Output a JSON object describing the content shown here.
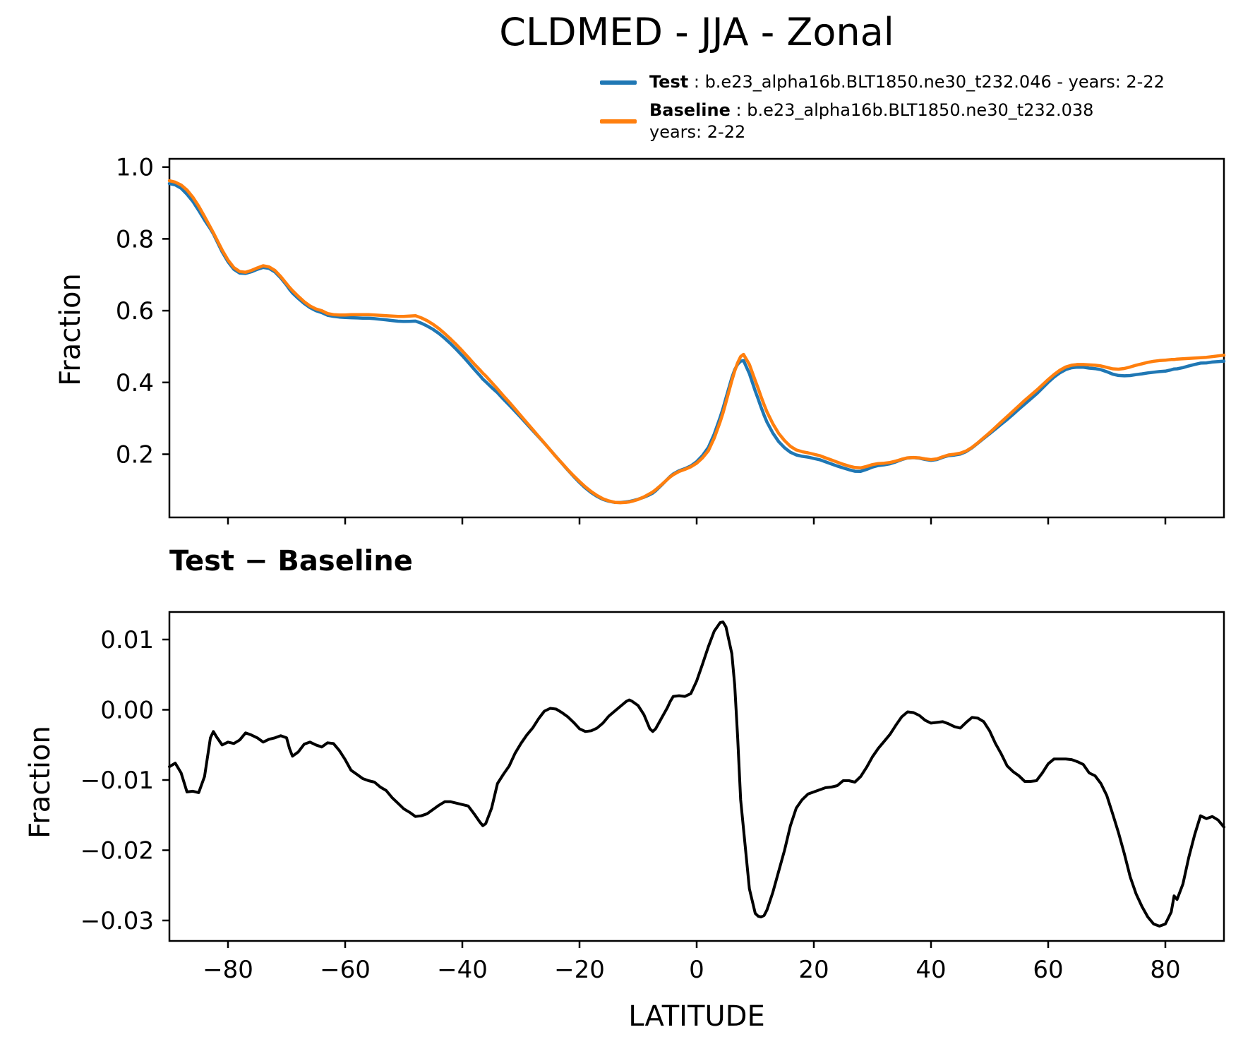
{
  "figure_title": "CLDMED - JJA - Zonal",
  "legend": {
    "test_label": "Test",
    "test_sep": " : ",
    "test_desc": "b.e23_alpha16b.BLT1850.ne30_t232.046 - years: 2-22",
    "test_color": "#1f77b4",
    "baseline_label": "Baseline",
    "baseline_sep": " : ",
    "baseline_desc": "b.e23_alpha16b.BLT1850.ne30_t232.038",
    "baseline_desc_line2": "years: 2-22",
    "baseline_color": "#ff7f0e"
  },
  "top_panel": {
    "ylabel": "Fraction",
    "ytick_labels": [
      "1.0",
      "0.8",
      "0.6",
      "0.4",
      "0.2"
    ],
    "ytick_values": [
      1.0,
      0.8,
      0.6,
      0.4,
      0.2
    ]
  },
  "bottom_panel": {
    "title": "Test − Baseline",
    "ylabel": "Fraction",
    "xlabel": "LATITUDE",
    "ytick_labels": [
      "0.01",
      "0.00",
      "−0.01",
      "−0.02",
      "−0.03"
    ],
    "ytick_values": [
      0.01,
      0.0,
      -0.01,
      -0.02,
      -0.03
    ],
    "xtick_labels": [
      "−80",
      "−60",
      "−40",
      "−20",
      "0",
      "20",
      "40",
      "60",
      "80"
    ],
    "xtick_values": [
      -80,
      -60,
      -40,
      -20,
      0,
      20,
      40,
      60,
      80
    ]
  },
  "chart_data": {
    "type": "line",
    "x_label": "LATITUDE",
    "x_range": [
      -90,
      90
    ],
    "grid": false,
    "legend_position": "above-axes upper-right",
    "latitudes": [
      -90,
      -89,
      -88,
      -87,
      -86,
      -85,
      -84,
      -83,
      -82.5,
      -82,
      -81,
      -80,
      -79,
      -78,
      -77,
      -76,
      -75,
      -74,
      -73,
      -72,
      -71,
      -70,
      -69.5,
      -69,
      -68,
      -67,
      -66,
      -65,
      -64,
      -63,
      -62,
      -61,
      -60,
      -59,
      -58,
      -57,
      -56,
      -55,
      -54,
      -53,
      -52,
      -51,
      -50,
      -49,
      -48,
      -47,
      -46,
      -45,
      -44,
      -43,
      -42,
      -41,
      -40,
      -39,
      -38,
      -37,
      -36.5,
      -36,
      -35,
      -34,
      -33,
      -32,
      -31,
      -30,
      -29,
      -28,
      -27,
      -26,
      -25,
      -24,
      -23,
      -22,
      -21,
      -20,
      -19,
      -18,
      -17,
      -16,
      -15,
      -14,
      -13,
      -12,
      -11.5,
      -11,
      -10,
      -9,
      -8,
      -7.5,
      -7,
      -6,
      -5,
      -4.5,
      -4,
      -3,
      -2,
      -1,
      0,
      1,
      2,
      3,
      4,
      4.5,
      5,
      6,
      6.5,
      7,
      7.5,
      8,
      9,
      10,
      10.5,
      11,
      11.5,
      12,
      13,
      14,
      15,
      16,
      17,
      18,
      19,
      20,
      21,
      22,
      23,
      24,
      25,
      26,
      27,
      28,
      29,
      30,
      31,
      32,
      33,
      34,
      35,
      36,
      37,
      38,
      39,
      40,
      41,
      42,
      43,
      44,
      45,
      46,
      47,
      48,
      49,
      50,
      51,
      52,
      53,
      54,
      55,
      56,
      57,
      58,
      59,
      60,
      61,
      62,
      63,
      64,
      65,
      66,
      67,
      68,
      69,
      70,
      71,
      72,
      73,
      74,
      75,
      76,
      77,
      78,
      79,
      80,
      81,
      81.5,
      82,
      83,
      84,
      85,
      86,
      87,
      88,
      89,
      90
    ],
    "panels": [
      {
        "title": "CLDMED - JJA - Zonal",
        "ylabel": "Fraction",
        "ylim": [
          0.02,
          1.02
        ],
        "series": [
          {
            "name": "Test",
            "legend_label": "Test : b.e23_alpha16b.BLT1850.ne30_t232.046 - years: 2-22",
            "color": "#1f77b4",
            "values": [
              0.9539,
              0.9504,
              0.941,
              0.9243,
              0.9044,
              0.8792,
              0.8525,
              0.828,
              0.8139,
              0.7972,
              0.764,
              0.7364,
              0.7152,
              0.7047,
              0.7037,
              0.7084,
              0.715,
              0.7204,
              0.7178,
              0.708,
              0.6913,
              0.671,
              0.6595,
              0.6494,
              0.634,
              0.6201,
              0.6084,
              0.6,
              0.5947,
              0.5873,
              0.5842,
              0.5822,
              0.5809,
              0.5804,
              0.5798,
              0.5792,
              0.5789,
              0.5777,
              0.576,
              0.5745,
              0.5725,
              0.5707,
              0.5699,
              0.5704,
              0.5708,
              0.5649,
              0.5572,
              0.5478,
              0.5364,
              0.5229,
              0.5079,
              0.4917,
              0.4745,
              0.4563,
              0.4372,
              0.419,
              0.4095,
              0.4018,
              0.386,
              0.3715,
              0.3538,
              0.337,
              0.3198,
              0.3022,
              0.2844,
              0.2664,
              0.2487,
              0.2308,
              0.2122,
              0.1931,
              0.1746,
              0.156,
              0.1382,
              0.1213,
              0.1059,
              0.093,
              0.0824,
              0.0741,
              0.0691,
              0.0658,
              0.0655,
              0.0672,
              0.0684,
              0.0702,
              0.0746,
              0.0803,
              0.0873,
              0.0919,
              0.0983,
              0.1138,
              0.1303,
              0.1382,
              0.1449,
              0.154,
              0.1599,
              0.1673,
              0.1791,
              0.1965,
              0.219,
              0.2562,
              0.3024,
              0.3275,
              0.3568,
              0.413,
              0.4355,
              0.451,
              0.4592,
              0.461,
              0.4245,
              0.376,
              0.3536,
              0.3305,
              0.3087,
              0.2895,
              0.259,
              0.235,
              0.218,
              0.2055,
              0.198,
              0.1942,
              0.192,
              0.1883,
              0.1846,
              0.1789,
              0.173,
              0.1672,
              0.1619,
              0.1569,
              0.1527,
              0.1525,
              0.1578,
              0.1643,
              0.1685,
              0.1705,
              0.1735,
              0.1788,
              0.185,
              0.1897,
              0.1906,
              0.1892,
              0.1855,
              0.1831,
              0.1852,
              0.1913,
              0.196,
              0.1976,
              0.2004,
              0.2072,
              0.2179,
              0.2308,
              0.2443,
              0.257,
              0.2702,
              0.2837,
              0.297,
              0.3112,
              0.3256,
              0.3398,
              0.3538,
              0.3679,
              0.384,
              0.4003,
              0.415,
              0.427,
              0.436,
              0.4409,
              0.4426,
              0.4422,
              0.44,
              0.4386,
              0.4355,
              0.4298,
              0.4232,
              0.4195,
              0.4185,
              0.4192,
              0.4218,
              0.424,
              0.4265,
              0.4285,
              0.4302,
              0.4315,
              0.4352,
              0.4375,
              0.438,
              0.4412,
              0.446,
              0.4502,
              0.4539,
              0.4545,
              0.4568,
              0.4583,
              0.4593
            ]
          },
          {
            "name": "Baseline",
            "legend_label": "Baseline : b.e23_alpha16b.BLT1850.ne30_t232.038 years: 2-22",
            "color": "#ff7f0e",
            "values": [
              0.962,
              0.958,
              0.95,
              0.936,
              0.916,
              0.891,
              0.862,
              0.832,
              0.817,
              0.801,
              0.769,
              0.741,
              0.72,
              0.709,
              0.707,
              0.712,
              0.719,
              0.725,
              0.722,
              0.712,
              0.695,
              0.675,
              0.665,
              0.656,
              0.64,
              0.625,
              0.613,
              0.605,
              0.6,
              0.592,
              0.589,
              0.588,
              0.588,
              0.589,
              0.589,
              0.589,
              0.589,
              0.588,
              0.587,
              0.586,
              0.585,
              0.584,
              0.584,
              0.585,
              0.586,
              0.58,
              0.572,
              0.562,
              0.55,
              0.536,
              0.521,
              0.505,
              0.488,
              0.47,
              0.452,
              0.435,
              0.426,
              0.418,
              0.4,
              0.382,
              0.363,
              0.345,
              0.326,
              0.307,
              0.288,
              0.269,
              0.25,
              0.231,
              0.212,
              0.193,
              0.175,
              0.157,
              0.14,
              0.124,
              0.109,
              0.096,
              0.085,
              0.076,
              0.07,
              0.066,
              0.065,
              0.066,
              0.067,
              0.069,
              0.074,
              0.081,
              0.09,
              0.095,
              0.101,
              0.115,
              0.13,
              0.137,
              0.143,
              0.152,
              0.158,
              0.165,
              0.175,
              0.19,
              0.21,
              0.245,
              0.29,
              0.315,
              0.345,
              0.405,
              0.432,
              0.455,
              0.472,
              0.478,
              0.45,
              0.405,
              0.383,
              0.36,
              0.338,
              0.318,
              0.285,
              0.258,
              0.238,
              0.222,
              0.212,
              0.207,
              0.204,
              0.2,
              0.196,
              0.19,
              0.184,
              0.178,
              0.172,
              0.167,
              0.163,
              0.162,
              0.166,
              0.171,
              0.174,
              0.175,
              0.177,
              0.181,
              0.186,
              0.19,
              0.191,
              0.19,
              0.187,
              0.185,
              0.187,
              0.193,
              0.198,
              0.2,
              0.203,
              0.209,
              0.219,
              0.232,
              0.246,
              0.26,
              0.275,
              0.29,
              0.305,
              0.32,
              0.335,
              0.35,
              0.364,
              0.378,
              0.393,
              0.408,
              0.422,
              0.434,
              0.443,
              0.448,
              0.45,
              0.45,
              0.449,
              0.448,
              0.446,
              0.442,
              0.438,
              0.437,
              0.439,
              0.443,
              0.448,
              0.452,
              0.456,
              0.459,
              0.461,
              0.462,
              0.464,
              0.464,
              0.465,
              0.466,
              0.467,
              0.468,
              0.469,
              0.47,
              0.472,
              0.474,
              0.476
            ]
          }
        ]
      },
      {
        "title": "Test − Baseline",
        "ylabel": "Fraction",
        "ylim": [
          -0.0328,
          0.0147
        ],
        "series": [
          {
            "name": "Test minus Baseline",
            "color": "#000000",
            "values": [
              -0.0081,
              -0.0076,
              -0.009,
              -0.0117,
              -0.0116,
              -0.0118,
              -0.0095,
              -0.004,
              -0.0031,
              -0.0038,
              -0.005,
              -0.0046,
              -0.0048,
              -0.0043,
              -0.0033,
              -0.0036,
              -0.004,
              -0.0046,
              -0.0042,
              -0.004,
              -0.0037,
              -0.004,
              -0.0055,
              -0.0066,
              -0.006,
              -0.0049,
              -0.0046,
              -0.005,
              -0.0053,
              -0.0047,
              -0.0048,
              -0.0058,
              -0.0071,
              -0.0086,
              -0.0092,
              -0.0098,
              -0.0101,
              -0.0103,
              -0.011,
              -0.0115,
              -0.0125,
              -0.0133,
              -0.0141,
              -0.0146,
              -0.0152,
              -0.0151,
              -0.0148,
              -0.0142,
              -0.0136,
              -0.0131,
              -0.0131,
              -0.0133,
              -0.0135,
              -0.0137,
              -0.0148,
              -0.016,
              -0.0165,
              -0.0162,
              -0.014,
              -0.0105,
              -0.0092,
              -0.008,
              -0.0062,
              -0.0048,
              -0.0036,
              -0.0026,
              -0.0013,
              -0.0002,
              0.0002,
              0.0001,
              -0.0004,
              -0.001,
              -0.0018,
              -0.0027,
              -0.0031,
              -0.003,
              -0.0026,
              -0.0019,
              -0.0009,
              -0.0002,
              0.0005,
              0.0012,
              0.0014,
              0.0012,
              0.0006,
              -0.0007,
              -0.0027,
              -0.0031,
              -0.0027,
              -0.0012,
              0.0003,
              0.0012,
              0.0019,
              0.002,
              0.0019,
              0.0023,
              0.0041,
              0.0065,
              0.009,
              0.0112,
              0.0124,
              0.0125,
              0.0118,
              0.008,
              0.0035,
              -0.004,
              -0.0128,
              -0.017,
              -0.0255,
              -0.029,
              -0.0294,
              -0.0295,
              -0.0293,
              -0.0285,
              -0.026,
              -0.023,
              -0.02,
              -0.0165,
              -0.014,
              -0.0128,
              -0.012,
              -0.0117,
              -0.0114,
              -0.0111,
              -0.011,
              -0.0108,
              -0.0101,
              -0.0101,
              -0.0103,
              -0.0095,
              -0.0082,
              -0.0067,
              -0.0055,
              -0.0045,
              -0.0035,
              -0.0022,
              -0.001,
              -0.0003,
              -0.0004,
              -0.0008,
              -0.0015,
              -0.0019,
              -0.0018,
              -0.0017,
              -0.002,
              -0.0024,
              -0.0026,
              -0.0018,
              -0.0011,
              -0.0012,
              -0.0017,
              -0.003,
              -0.0048,
              -0.0063,
              -0.008,
              -0.0088,
              -0.0094,
              -0.0102,
              -0.0102,
              -0.0101,
              -0.009,
              -0.0077,
              -0.007,
              -0.007,
              -0.007,
              -0.0071,
              -0.0074,
              -0.0078,
              -0.009,
              -0.0094,
              -0.0105,
              -0.0122,
              -0.0148,
              -0.0175,
              -0.0205,
              -0.0238,
              -0.0262,
              -0.028,
              -0.0295,
              -0.0305,
              -0.0308,
              -0.0305,
              -0.0288,
              -0.0265,
              -0.027,
              -0.0248,
              -0.021,
              -0.0178,
              -0.0151,
              -0.0155,
              -0.0152,
              -0.0157,
              -0.0167
            ]
          }
        ]
      }
    ]
  }
}
